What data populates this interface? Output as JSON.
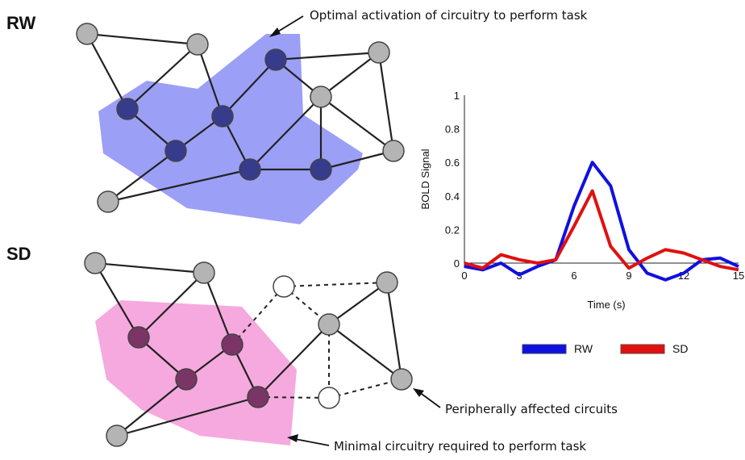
{
  "panels": {
    "rw_label": "RW",
    "sd_label": "SD"
  },
  "annotations": {
    "optimal": "Optimal activation of circuitry to perform task",
    "peripheral": "Peripherally affected circuits",
    "minimal": "Minimal circuitry required to perform task"
  },
  "colors": {
    "rw_region": "#8b8ef5",
    "rw_node": "#363b8c",
    "sd_region": "#f59ad8",
    "sd_node": "#7a3466",
    "gray_node": "#b4b4b4",
    "rw_line": "#1010e0",
    "sd_line": "#e01010"
  },
  "chart_data": {
    "type": "line",
    "xlabel": "Time (s)",
    "ylabel": "BOLD Signal",
    "xlim": [
      0,
      15
    ],
    "ylim": [
      0,
      1
    ],
    "xticks": [
      "0",
      "3",
      "6",
      "9",
      "12",
      "15"
    ],
    "yticks": [
      "0",
      "0.2",
      "0.4",
      "0.6",
      "0.8",
      "1"
    ],
    "series": [
      {
        "name": "RW",
        "color": "#1010e0",
        "x": [
          0,
          1,
          2,
          3,
          4,
          5,
          6,
          7,
          8,
          9,
          10,
          11,
          12,
          13,
          14,
          15
        ],
        "y": [
          -0.02,
          -0.04,
          0.0,
          -0.07,
          -0.02,
          0.02,
          0.34,
          0.6,
          0.46,
          0.08,
          -0.06,
          -0.1,
          -0.06,
          0.02,
          0.03,
          -0.02
        ]
      },
      {
        "name": "SD",
        "color": "#e01010",
        "x": [
          0,
          1,
          2,
          3,
          4,
          5,
          6,
          7,
          8,
          9,
          10,
          11,
          12,
          13,
          14,
          15
        ],
        "y": [
          0.0,
          -0.03,
          0.05,
          0.02,
          0.0,
          0.02,
          0.22,
          0.43,
          0.1,
          -0.03,
          0.03,
          0.08,
          0.06,
          0.02,
          -0.02,
          -0.04
        ]
      }
    ],
    "legend": "bottom"
  }
}
